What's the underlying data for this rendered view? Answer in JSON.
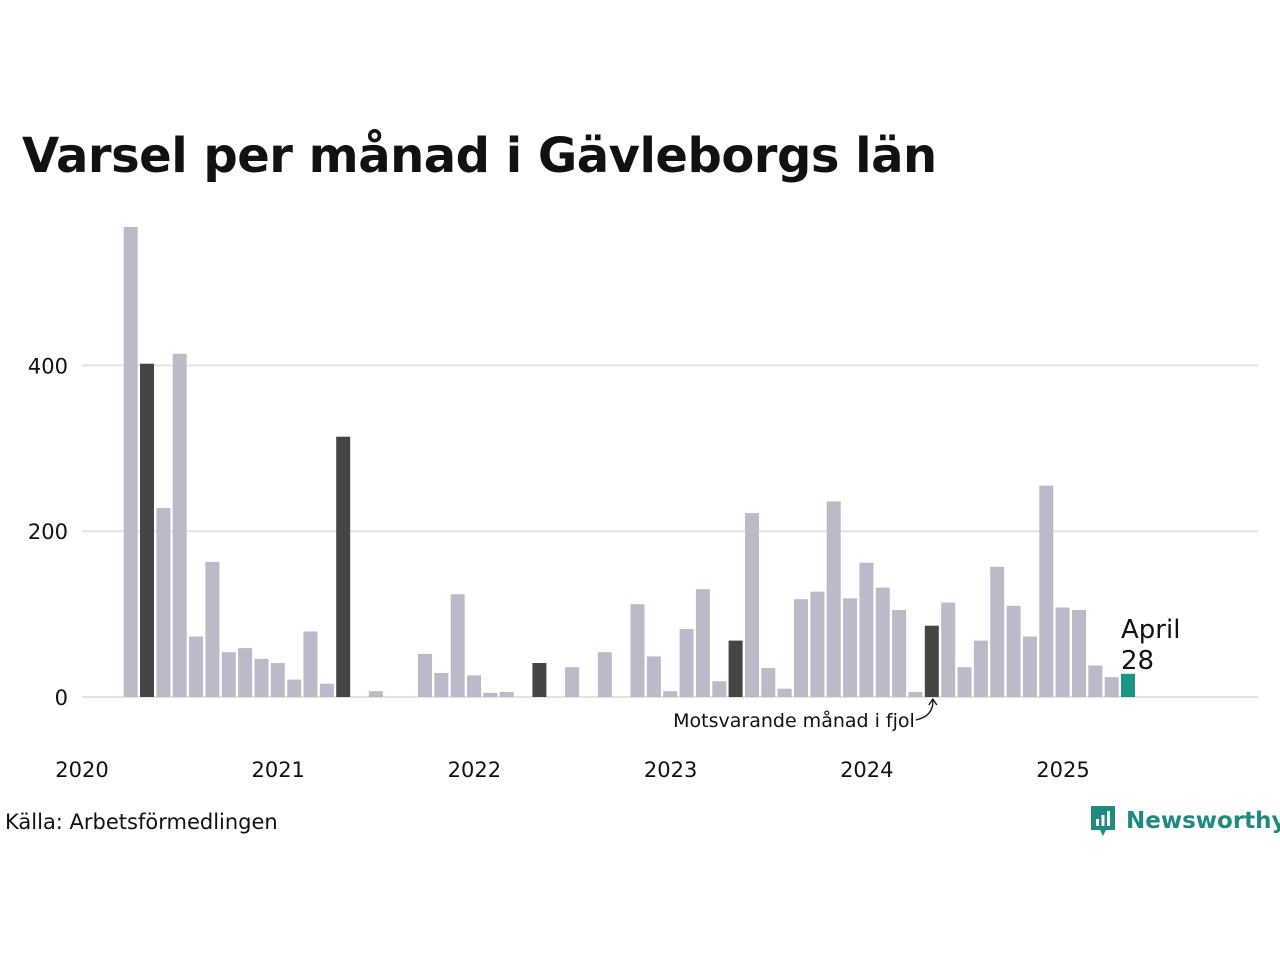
{
  "chart_data": {
    "type": "bar",
    "title": "Varsel per månad i Gävleborgs län",
    "xlabel": "",
    "ylabel": "",
    "ylim": [
      0,
      570
    ],
    "y_ticks": [
      0,
      200,
      400
    ],
    "x_tick_labels": [
      "2020",
      "2021",
      "2022",
      "2023",
      "2024",
      "2025"
    ],
    "start": "2020-03",
    "months": [
      "2020-03",
      "2020-04",
      "2020-05",
      "2020-06",
      "2020-07",
      "2020-08",
      "2020-09",
      "2020-10",
      "2020-11",
      "2020-12",
      "2021-01",
      "2021-02",
      "2021-03",
      "2021-04",
      "2021-05",
      "2021-06",
      "2021-07",
      "2021-08",
      "2021-09",
      "2021-10",
      "2021-11",
      "2021-12",
      "2022-01",
      "2022-02",
      "2022-03",
      "2022-04",
      "2022-05",
      "2022-06",
      "2022-07",
      "2022-08",
      "2022-09",
      "2022-10",
      "2022-11",
      "2022-12",
      "2023-01",
      "2023-02",
      "2023-03",
      "2023-04",
      "2023-05",
      "2023-06",
      "2023-07",
      "2023-08",
      "2023-09",
      "2023-10",
      "2023-11",
      "2023-12",
      "2024-01",
      "2024-02",
      "2024-03",
      "2024-04",
      "2024-05",
      "2024-06",
      "2024-07",
      "2024-08",
      "2024-09",
      "2024-10",
      "2024-11",
      "2024-12",
      "2025-01",
      "2025-02",
      "2025-03",
      "2025-04"
    ],
    "values": [
      567,
      402,
      228,
      414,
      73,
      163,
      54,
      59,
      46,
      41,
      21,
      79,
      16,
      314,
      0,
      7,
      0,
      0,
      52,
      29,
      124,
      26,
      5,
      6,
      0,
      41,
      0,
      36,
      0,
      54,
      0,
      112,
      49,
      7,
      82,
      130,
      19,
      68,
      222,
      35,
      10,
      118,
      127,
      236,
      119,
      162,
      132,
      105,
      6,
      86,
      114,
      36,
      68,
      157,
      110,
      73,
      255,
      108,
      105,
      38,
      24,
      28
    ],
    "highlight_april": [
      "2020-04",
      "2021-04",
      "2022-04",
      "2023-04",
      "2024-04"
    ],
    "current": "2025-04",
    "current_label": "April",
    "current_value": "28",
    "annotation": "Motsvarande månad i fjol",
    "grid": "horizontal",
    "colors": {
      "default": "#bcbac8",
      "april": "#454545",
      "current": "#1a9584",
      "grid": "#e3e3e3"
    }
  },
  "source": "Källa: Arbetsförmedlingen",
  "brand": {
    "name": "Newsworthy",
    "icon": "newsworthy-logo-icon",
    "color": "#1f8a82"
  }
}
